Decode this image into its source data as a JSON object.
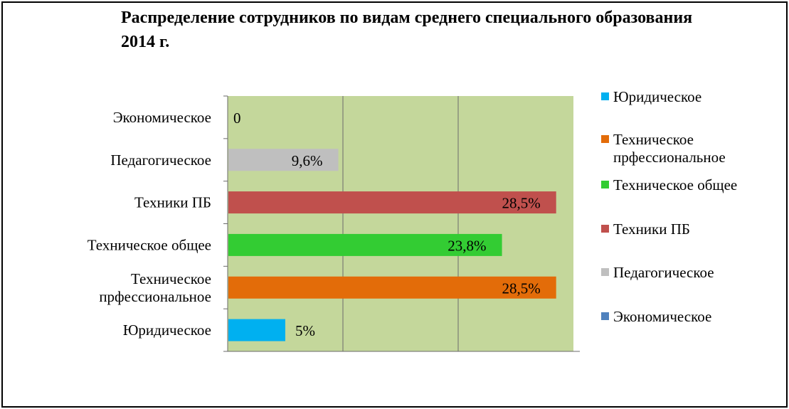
{
  "chart_data": {
    "type": "bar",
    "orientation": "horizontal",
    "title": "Распределение сотрудников по видам среднего специального образования 2014 г.",
    "categories": [
      "Юридическое",
      "Техническое прфессиональное",
      "Техническое общее",
      "Техники ПБ",
      "Педагогическое",
      "Экономическое"
    ],
    "category_lines": [
      [
        "Юридическое"
      ],
      [
        "Техническое",
        "прфессиональное"
      ],
      [
        "Техническое общее"
      ],
      [
        "Техники ПБ"
      ],
      [
        "Педагогическое"
      ],
      [
        "Экономическое"
      ]
    ],
    "values": [
      5,
      28.5,
      23.8,
      28.5,
      9.6,
      0
    ],
    "data_labels": [
      "5%",
      "28,5%",
      "23,8%",
      "28,5%",
      "9,6%",
      "0"
    ],
    "colors": [
      "#00B0F0",
      "#E36C09",
      "#33CC33",
      "#C0504D",
      "#BFBFBF",
      "#4F81BD"
    ],
    "xlim": [
      0,
      30
    ],
    "plot_background": "#C4D79B",
    "grid": true,
    "legend": {
      "position": "right",
      "entries": [
        {
          "label_lines": [
            "Юридическое"
          ],
          "color": "#00B0F0"
        },
        {
          "label_lines": [
            "Техническое",
            "прфессиональное"
          ],
          "color": "#E36C09"
        },
        {
          "label_lines": [
            "Техническое общее"
          ],
          "color": "#33CC33"
        },
        {
          "label_lines": [
            "Техники ПБ"
          ],
          "color": "#C0504D"
        },
        {
          "label_lines": [
            "Педагогическое"
          ],
          "color": "#BFBFBF"
        },
        {
          "label_lines": [
            "Экономическое"
          ],
          "color": "#4F81BD"
        }
      ]
    }
  }
}
